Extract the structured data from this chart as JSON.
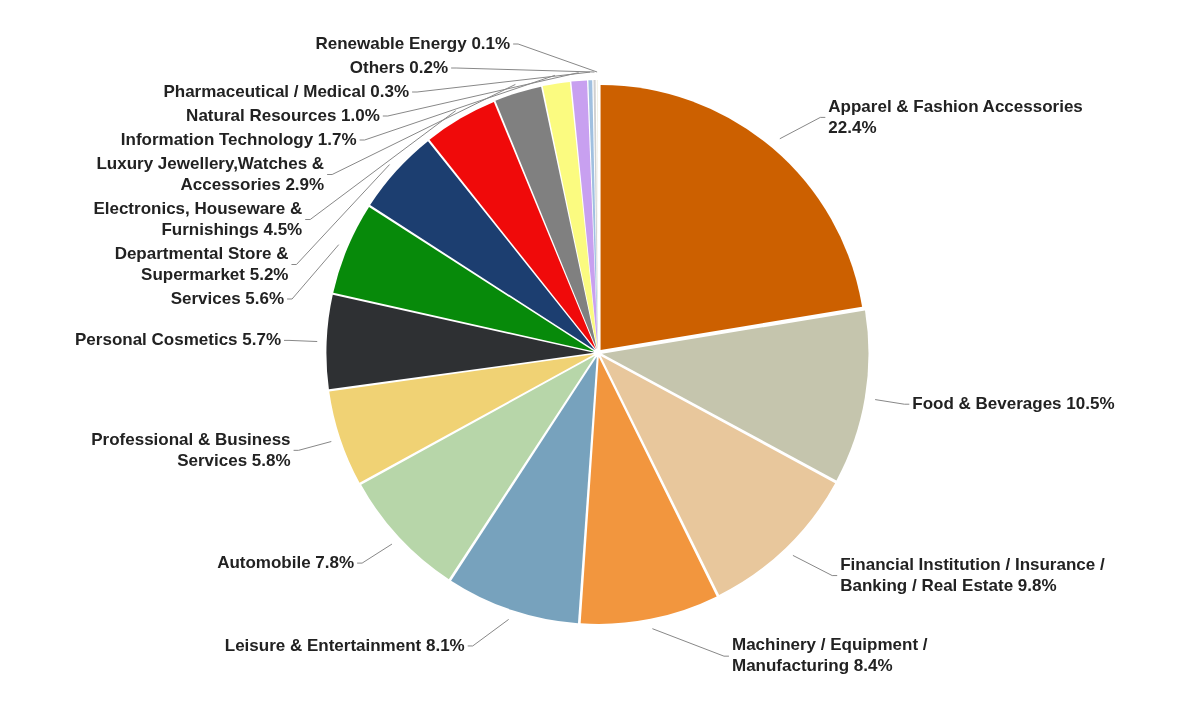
{
  "chart_data": {
    "type": "pie",
    "categories": [
      "Apparel & Fashion Accessories",
      "Food & Beverages",
      "Financial Institution / Insurance / Banking / Real Estate",
      "Machinery / Equipment / Manufacturing",
      "Leisure & Entertainment",
      "Automobile",
      "Professional & Business Services",
      "Personal Cosmetics",
      "Services",
      "Departmental Store & Supermarket",
      "Electronics, Houseware & Furnishings",
      "Luxury Jewellery,Watches & Accessories",
      "Information Technology",
      "Natural Resources",
      "Pharmaceutical / Medical",
      "Others",
      "Renewable Energy"
    ],
    "values": [
      22.4,
      10.5,
      9.8,
      8.4,
      8.1,
      7.8,
      5.8,
      5.7,
      5.6,
      5.2,
      4.5,
      2.9,
      1.7,
      1.0,
      0.3,
      0.2,
      0.1
    ],
    "value_labels": [
      "22.4%",
      "10.5%",
      "9.8%",
      "8.4%",
      "8.1%",
      "7.8%",
      "5.8%",
      "5.7%",
      "5.6%",
      "5.2%",
      "4.5%",
      "2.9%",
      "1.7%",
      "1.0%",
      "0.3%",
      "0.2%",
      "0.1%"
    ],
    "colors": [
      "#cc6000",
      "#c5c5ad",
      "#e8c79c",
      "#f2963e",
      "#77a2bd",
      "#b7d6a9",
      "#f0d274",
      "#2e3033",
      "#078a0a",
      "#1c3e70",
      "#f00a0a",
      "#808080",
      "#fbfb80",
      "#c8a0f0",
      "#a0c0e0",
      "#d0d0d0",
      "#e0e0c0"
    ]
  }
}
